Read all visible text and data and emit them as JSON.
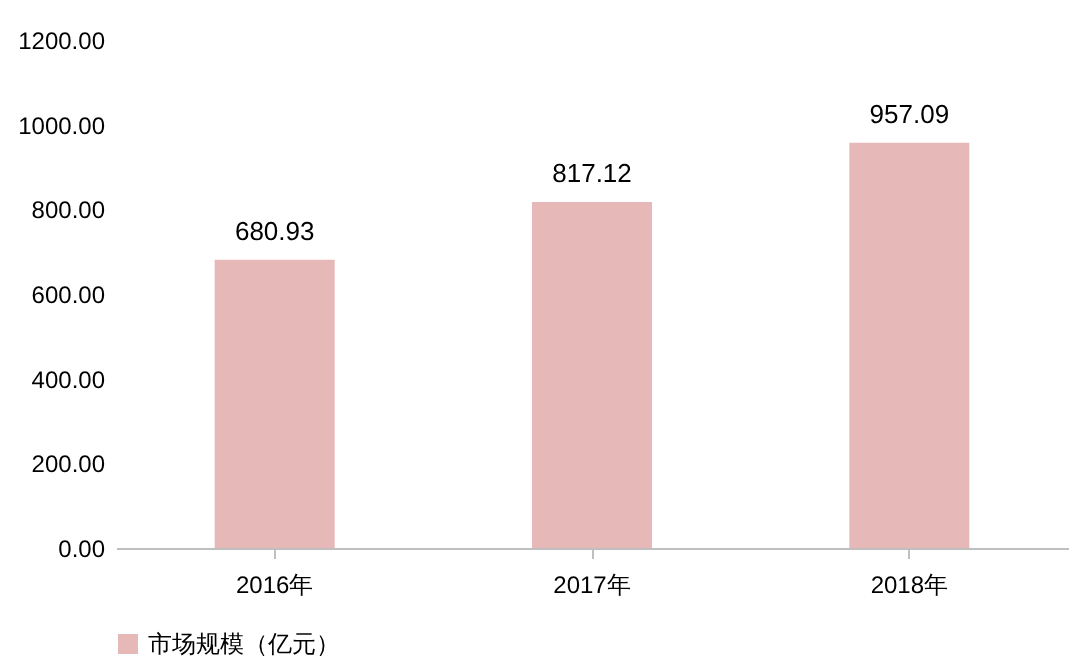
{
  "chart_data": {
    "type": "bar",
    "categories": [
      "2016年",
      "2017年",
      "2018年"
    ],
    "series": [
      {
        "name": "市场规模（亿元）",
        "color": "#e6b9b8",
        "values": [
          680.93,
          817.12,
          957.09
        ]
      }
    ],
    "ylim": [
      0,
      1200
    ],
    "yticks": [
      {
        "value": 0,
        "label": "0.00"
      },
      {
        "value": 200,
        "label": "200.00"
      },
      {
        "value": 400,
        "label": "400.00"
      },
      {
        "value": 600,
        "label": "600.00"
      },
      {
        "value": 800,
        "label": "800.00"
      },
      {
        "value": 1000,
        "label": "1000.00"
      },
      {
        "value": 1200,
        "label": "1200.00"
      }
    ],
    "data_labels": true,
    "legend": "bottom",
    "grid": false
  }
}
